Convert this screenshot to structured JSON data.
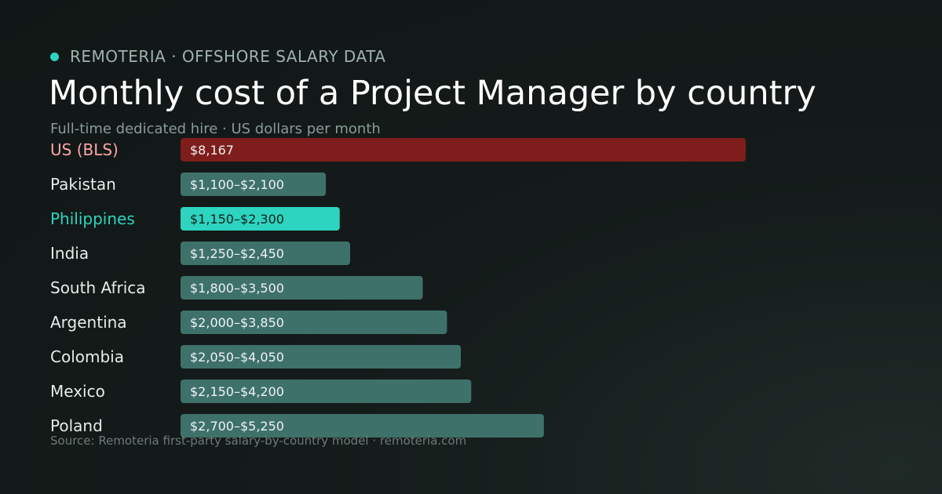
{
  "brand": {
    "dot_icon": "status-dot-icon",
    "label": "REMOTERIA · OFFSHORE SALARY DATA"
  },
  "colors": {
    "accent": "#2dd4bf",
    "us_bar": "#7f1d1d",
    "us_label": "#fca5a5",
    "default_bar": "#3f716b",
    "default_label": "#e6ecea"
  },
  "source": "Source: Remoteria first-party salary-by-country model · remoteria.com",
  "chart_data": {
    "type": "bar",
    "orientation": "horizontal",
    "title": "Monthly cost of a Project Manager by country",
    "subtitle": "Full-time dedicated hire · US dollars per month",
    "xlabel": "",
    "ylabel": "",
    "grid": false,
    "legend": "none",
    "xlim": [
      0,
      8167
    ],
    "categories": [
      "US (BLS)",
      "Pakistan",
      "Philippines",
      "India",
      "South Africa",
      "Argentina",
      "Colombia",
      "Mexico",
      "Poland"
    ],
    "series": [
      {
        "low": [
          8167,
          1100,
          1150,
          1250,
          1800,
          2000,
          2050,
          2150,
          2700
        ],
        "high": [
          8167,
          2100,
          2300,
          2450,
          3500,
          3850,
          4050,
          4200,
          5250
        ],
        "data_labels": [
          "$8,167",
          "$1,100–$2,100",
          "$1,150–$2,300",
          "$1,250–$2,450",
          "$1,800–$3,500",
          "$2,000–$3,850",
          "$2,050–$4,050",
          "$2,150–$4,200",
          "$2,700–$5,250"
        ]
      }
    ],
    "highlight": {
      "US (BLS)": "us",
      "Philippines": "accent"
    }
  }
}
